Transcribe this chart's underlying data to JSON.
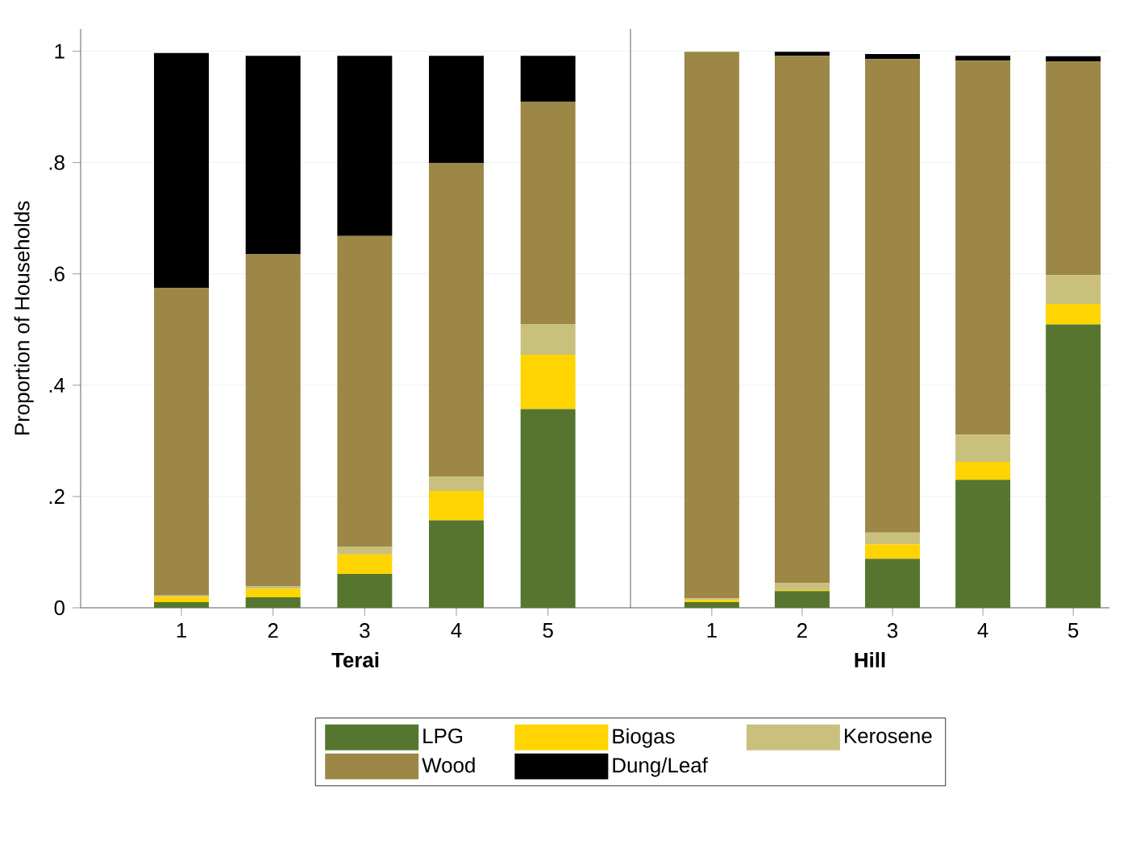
{
  "chart_data": [
    {
      "type": "bar",
      "stacked": true,
      "xlabel": "Terai",
      "ylabel": "Proportion of Households",
      "categories": [
        "1",
        "2",
        "3",
        "4",
        "5"
      ],
      "ylim": [
        0,
        1.04
      ],
      "yticks": [
        0,
        {
          "value": 0.2,
          "label": ".2"
        },
        {
          "value": 0.4,
          "label": ".4"
        },
        {
          "value": 0.6,
          "label": ".6"
        },
        {
          "value": 0.8,
          "label": ".8"
        },
        1
      ],
      "grid": "y",
      "legend": "bottom",
      "series": [
        {
          "name": "LPG",
          "color": "#56762f",
          "values": [
            0.01,
            0.019,
            0.061,
            0.157,
            0.357
          ]
        },
        {
          "name": "Biogas",
          "color": "#ffd400",
          "values": [
            0.01,
            0.015,
            0.035,
            0.053,
            0.098
          ]
        },
        {
          "name": "Kerosene",
          "color": "#c9c07e",
          "values": [
            0.002,
            0.005,
            0.014,
            0.026,
            0.054
          ]
        },
        {
          "name": "Wood",
          "color": "#9c8746",
          "values": [
            0.553,
            0.596,
            0.558,
            0.563,
            0.4
          ]
        },
        {
          "name": "Dung/Leaf",
          "color": "#000000",
          "values": [
            0.422,
            0.357,
            0.324,
            0.193,
            0.083
          ]
        }
      ]
    },
    {
      "type": "bar",
      "stacked": true,
      "xlabel": "Hill",
      "categories": [
        "1",
        "2",
        "3",
        "4",
        "5"
      ],
      "ylim": [
        0,
        1.04
      ],
      "yticks": [
        {
          "value": 0,
          "label": null
        },
        {
          "value": 0.2,
          "label": null
        },
        {
          "value": 0.4,
          "label": null
        },
        {
          "value": 0.6,
          "label": null
        },
        {
          "value": 0.8,
          "label": null
        },
        {
          "value": 1,
          "label": null
        }
      ],
      "grid": "y",
      "tick_labels": "x",
      "series": [
        {
          "color": "#56762f",
          "values": [
            0.01,
            0.03,
            0.088,
            0.23,
            0.509
          ]
        },
        {
          "color": "#ffd400",
          "values": [
            0.004,
            0.002,
            0.026,
            0.032,
            0.037
          ]
        },
        {
          "color": "#c9c07e",
          "values": [
            0.003,
            0.012,
            0.021,
            0.049,
            0.052
          ]
        },
        {
          "color": "#9c8746",
          "values": [
            0.982,
            0.948,
            0.851,
            0.672,
            0.384
          ]
        },
        {
          "color": "#000000",
          "values": [
            0,
            0.007,
            0.009,
            0.009,
            0.009
          ]
        }
      ]
    }
  ]
}
